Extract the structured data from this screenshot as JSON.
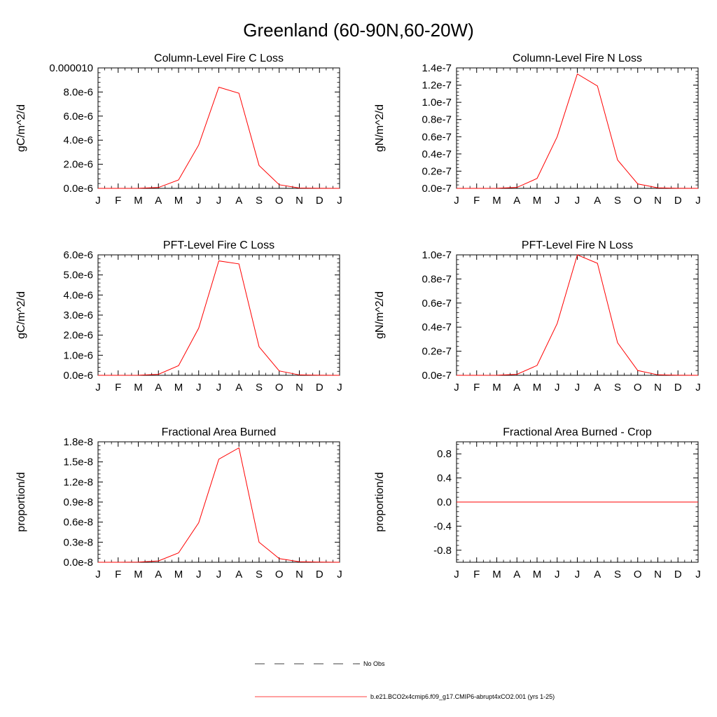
{
  "page": {
    "title": "Greenland (60-90N,60-20W)"
  },
  "legend": {
    "items": [
      {
        "label": "No Obs",
        "style": "dashed",
        "color": "#000000"
      },
      {
        "label": "b.e21.BCO2x4cmip6.f09_g17.CMIP6-abrupt4xCO2.001 (yrs 1-25)",
        "style": "solid",
        "color": "#ff0000"
      }
    ]
  },
  "chart_data": [
    {
      "type": "line",
      "title": "Column-Level Fire C Loss",
      "ylabel": "gC/m^2/d",
      "x": [
        "J",
        "F",
        "M",
        "A",
        "M",
        "J",
        "J",
        "A",
        "S",
        "O",
        "N",
        "D",
        "J"
      ],
      "ylim": [
        0,
        1e-05
      ],
      "yticks": [
        0,
        2e-06,
        4e-06,
        6e-06,
        8e-06,
        1e-05
      ],
      "yticklabels": [
        "0.0e-6",
        "2.0e-6",
        "4.0e-6",
        "6.0e-6",
        "8.0e-6",
        "0.000010"
      ],
      "series": [
        {
          "color": "#ff0000",
          "values": [
            0,
            0,
            1e-08,
            7e-08,
            7e-07,
            3.6e-06,
            8.4e-06,
            7.9e-06,
            1.9e-06,
            3e-07,
            3e-08,
            1e-08,
            0
          ]
        }
      ]
    },
    {
      "type": "line",
      "title": "Column-Level Fire N Loss",
      "ylabel": "gN/m^2/d",
      "x": [
        "J",
        "F",
        "M",
        "A",
        "M",
        "J",
        "J",
        "A",
        "S",
        "O",
        "N",
        "D",
        "J"
      ],
      "ylim": [
        0,
        1.4e-07
      ],
      "yticks": [
        0,
        2e-08,
        4e-08,
        6e-08,
        8e-08,
        1e-07,
        1.2e-07,
        1.4e-07
      ],
      "yticklabels": [
        "0.0e-7",
        "0.2e-7",
        "0.4e-7",
        "0.6e-7",
        "0.8e-7",
        "1.0e-7",
        "1.2e-7",
        "1.4e-7"
      ],
      "series": [
        {
          "color": "#ff0000",
          "values": [
            0,
            0,
            1e-10,
            1.1e-09,
            1.15e-08,
            6e-08,
            1.33e-07,
            1.19e-07,
            3.3e-08,
            5.2e-09,
            6e-10,
            1e-10,
            0
          ]
        }
      ]
    },
    {
      "type": "line",
      "title": "PFT-Level Fire C Loss",
      "ylabel": "gC/m^2/d",
      "x": [
        "J",
        "F",
        "M",
        "A",
        "M",
        "J",
        "J",
        "A",
        "S",
        "O",
        "N",
        "D",
        "J"
      ],
      "ylim": [
        0,
        6e-06
      ],
      "yticks": [
        0,
        1e-06,
        2e-06,
        3e-06,
        4e-06,
        5e-06,
        6e-06
      ],
      "yticklabels": [
        "0.0e-6",
        "1.0e-6",
        "2.0e-6",
        "3.0e-6",
        "4.0e-6",
        "5.0e-6",
        "6.0e-6"
      ],
      "series": [
        {
          "color": "#ff0000",
          "values": [
            0,
            0,
            6e-09,
            5e-08,
            4.8e-07,
            2.35e-06,
            5.7e-06,
            5.55e-06,
            1.42e-06,
            2.2e-07,
            2e-08,
            6e-09,
            0
          ]
        }
      ]
    },
    {
      "type": "line",
      "title": "PFT-Level Fire N Loss",
      "ylabel": "gN/m^2/d",
      "x": [
        "J",
        "F",
        "M",
        "A",
        "M",
        "J",
        "J",
        "A",
        "S",
        "O",
        "N",
        "D",
        "J"
      ],
      "ylim": [
        0,
        1e-07
      ],
      "yticks": [
        0,
        2e-08,
        4e-08,
        6e-08,
        8e-08,
        1e-07
      ],
      "yticklabels": [
        "0.0e-7",
        "0.2e-7",
        "0.4e-7",
        "0.6e-7",
        "0.8e-7",
        "1.0e-7"
      ],
      "series": [
        {
          "color": "#ff0000",
          "values": [
            0,
            0,
            1e-10,
            8e-10,
            8.2e-09,
            4.3e-08,
            1e-07,
            9.3e-08,
            2.7e-08,
            4e-09,
            4e-10,
            1e-10,
            0
          ]
        }
      ]
    },
    {
      "type": "line",
      "title": "Fractional Area Burned",
      "ylabel": "proportion/d",
      "x": [
        "J",
        "F",
        "M",
        "A",
        "M",
        "J",
        "J",
        "A",
        "S",
        "O",
        "N",
        "D",
        "J"
      ],
      "ylim": [
        0,
        1.8e-08
      ],
      "yticks": [
        0,
        3e-09,
        6e-09,
        9e-09,
        1.2e-08,
        1.5e-08,
        1.8e-08
      ],
      "yticklabels": [
        "0.0e-8",
        "0.3e-8",
        "0.6e-8",
        "0.9e-8",
        "1.2e-8",
        "1.5e-8",
        "1.8e-8"
      ],
      "series": [
        {
          "color": "#ff0000",
          "values": [
            0,
            0,
            2e-11,
            2e-10,
            1.4e-09,
            5.9e-09,
            1.54e-08,
            1.71e-08,
            3e-09,
            5.5e-10,
            8e-11,
            2e-11,
            0
          ]
        }
      ]
    },
    {
      "type": "line",
      "title": "Fractional Area Burned - Crop",
      "ylabel": "proportion/d",
      "x": [
        "J",
        "F",
        "M",
        "A",
        "M",
        "J",
        "J",
        "A",
        "S",
        "O",
        "N",
        "D",
        "J"
      ],
      "ylim": [
        -1,
        1
      ],
      "yticks": [
        -0.8,
        -0.4,
        0,
        0.4,
        0.8
      ],
      "yticklabels": [
        "-0.8",
        "-0.4",
        "0.0",
        "0.4",
        "0.8"
      ],
      "series": [
        {
          "color": "#ff0000",
          "values": [
            0,
            0,
            0,
            0,
            0,
            0,
            0,
            0,
            0,
            0,
            0,
            0,
            0
          ]
        }
      ]
    }
  ]
}
